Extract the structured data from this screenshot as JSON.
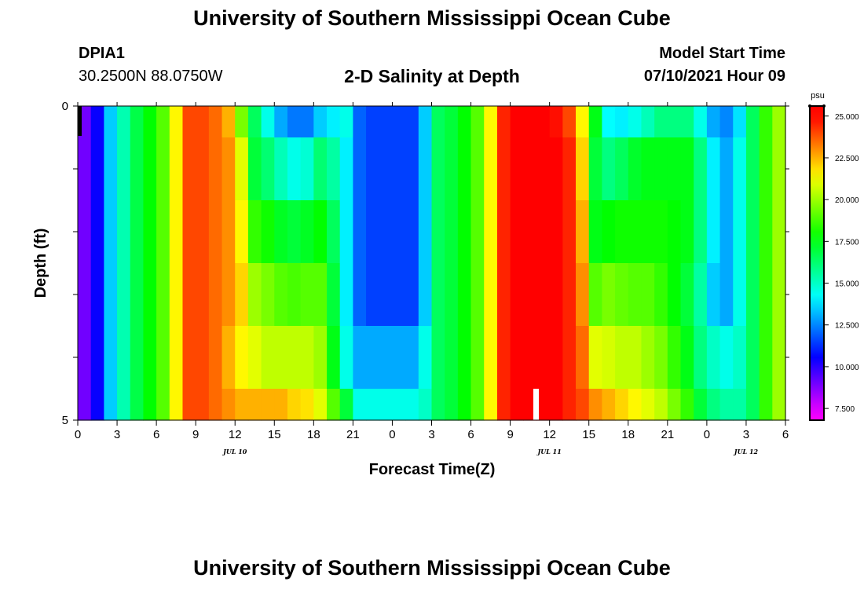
{
  "header": {
    "title": "University of Southern Mississippi Ocean Cube",
    "station_id": "DPIA1",
    "coords": "30.2500N  88.0750W",
    "chart_title": "2-D Salinity at Depth",
    "model_start_label": "Model Start Time",
    "model_start_time": "07/10/2021 Hour 09"
  },
  "footer": {
    "title": "University of Southern Mississippi Ocean Cube"
  },
  "chart_data": {
    "type": "heatmap",
    "title": "2-D Salinity at Depth",
    "xlabel": "Forecast Time(Z)",
    "ylabel": "Depth (ft)",
    "x_tick_labels": [
      "0",
      "3",
      "6",
      "9",
      "12",
      "15",
      "18",
      "21",
      "0",
      "3",
      "6",
      "9",
      "12",
      "15",
      "18",
      "21",
      "0",
      "3",
      "6"
    ],
    "x_range_hours": [
      0,
      54
    ],
    "date_labels": [
      {
        "label": "JUL 10",
        "hour": 12
      },
      {
        "label": "JUL 11",
        "hour": 36
      },
      {
        "label": "JUL 12",
        "hour": 51
      }
    ],
    "y_tick_labels": [
      "0",
      "5"
    ],
    "y_range": [
      0,
      5
    ],
    "colorbar": {
      "unit": "psu",
      "tick_labels": [
        "25.000",
        "22.500",
        "20.000",
        "17.500",
        "15.000",
        "12.500",
        "10.000",
        "7.500"
      ],
      "range": [
        6.8,
        25.6
      ]
    },
    "hours": [
      0,
      1,
      2,
      3,
      4,
      5,
      6,
      7,
      8,
      9,
      10,
      11,
      12,
      13,
      14,
      15,
      16,
      17,
      18,
      19,
      20,
      21,
      22,
      23,
      24,
      25,
      26,
      27,
      28,
      29,
      30,
      31,
      32,
      33,
      34,
      35,
      36,
      37,
      38,
      39,
      40,
      41,
      42,
      43,
      44,
      45,
      46,
      47,
      48,
      49,
      50,
      51,
      52,
      53
    ],
    "depth_layers": [
      {
        "depth": [
          0.0,
          0.5
        ],
        "values": [
          9.0,
          10.5,
          13.5,
          15.3,
          16.8,
          17.8,
          19.0,
          21.5,
          24.0,
          24.0,
          23.5,
          22.5,
          19.5,
          16.5,
          14.5,
          13.0,
          12.3,
          12.3,
          13.5,
          14.0,
          14.5,
          12.0,
          11.5,
          11.5,
          11.5,
          11.5,
          13.5,
          16.5,
          17.0,
          17.8,
          19.0,
          21.5,
          24.5,
          25.0,
          25.0,
          25.0,
          24.8,
          24.0,
          21.5,
          17.5,
          14.2,
          14.0,
          14.5,
          15.2,
          16.0,
          16.0,
          16.0,
          14.5,
          13.0,
          12.5,
          13.8,
          16.5,
          18.5,
          20.0
        ]
      },
      {
        "depth": [
          0.5,
          1.5
        ],
        "values": [
          9.0,
          10.5,
          13.5,
          15.3,
          16.8,
          17.8,
          19.0,
          21.5,
          24.0,
          24.0,
          23.5,
          23.0,
          21.0,
          17.0,
          16.2,
          15.2,
          14.5,
          14.8,
          16.2,
          15.5,
          14.0,
          12.0,
          11.5,
          11.5,
          11.5,
          11.5,
          13.5,
          16.5,
          17.0,
          17.8,
          19.0,
          21.5,
          24.5,
          25.0,
          25.0,
          25.0,
          25.0,
          24.5,
          22.0,
          17.0,
          16.0,
          16.5,
          17.2,
          17.5,
          17.5,
          17.5,
          17.5,
          16.0,
          14.0,
          13.0,
          14.5,
          16.5,
          18.5,
          20.0
        ]
      },
      {
        "depth": [
          1.5,
          2.5
        ],
        "values": [
          9.0,
          10.5,
          13.5,
          15.3,
          16.8,
          17.8,
          19.0,
          21.5,
          24.0,
          24.0,
          23.5,
          23.0,
          21.5,
          18.5,
          18.0,
          17.3,
          17.0,
          17.3,
          17.8,
          16.5,
          14.0,
          12.0,
          11.5,
          11.5,
          11.5,
          11.5,
          13.5,
          16.5,
          17.0,
          17.8,
          19.0,
          21.5,
          24.5,
          25.0,
          25.0,
          25.0,
          25.0,
          24.5,
          22.5,
          17.5,
          17.8,
          18.0,
          18.0,
          18.0,
          18.0,
          17.8,
          17.5,
          16.0,
          14.0,
          13.0,
          14.5,
          16.5,
          18.5,
          20.0
        ]
      },
      {
        "depth": [
          2.5,
          3.5
        ],
        "values": [
          9.0,
          10.5,
          13.5,
          15.3,
          16.8,
          17.8,
          19.0,
          21.5,
          24.0,
          24.0,
          23.5,
          23.0,
          22.0,
          20.0,
          19.5,
          19.0,
          18.8,
          19.0,
          19.0,
          17.0,
          14.0,
          12.0,
          11.5,
          11.5,
          11.5,
          11.5,
          13.5,
          16.5,
          17.0,
          17.8,
          19.0,
          21.5,
          24.5,
          25.0,
          25.0,
          25.0,
          25.0,
          24.5,
          23.0,
          19.0,
          19.5,
          19.2,
          19.0,
          19.0,
          18.5,
          17.8,
          17.0,
          15.5,
          13.5,
          13.0,
          14.5,
          16.5,
          18.5,
          20.0
        ]
      },
      {
        "depth": [
          3.5,
          4.5
        ],
        "values": [
          9.0,
          10.5,
          13.5,
          15.3,
          16.8,
          17.8,
          19.0,
          21.5,
          24.0,
          24.0,
          23.5,
          22.5,
          21.5,
          21.0,
          20.5,
          20.5,
          20.5,
          20.5,
          20.0,
          17.5,
          14.5,
          13.0,
          13.0,
          13.0,
          13.0,
          13.0,
          14.5,
          16.5,
          17.0,
          17.8,
          19.0,
          21.5,
          24.5,
          25.0,
          25.0,
          25.0,
          25.0,
          24.5,
          23.5,
          21.0,
          20.8,
          20.5,
          20.5,
          20.0,
          19.5,
          18.5,
          17.5,
          16.0,
          15.0,
          14.5,
          15.0,
          16.5,
          18.5,
          20.0
        ]
      },
      {
        "depth": [
          4.5,
          5.0
        ],
        "values": [
          9.0,
          10.5,
          13.5,
          15.3,
          16.8,
          17.8,
          19.0,
          21.5,
          24.0,
          24.0,
          23.5,
          23.0,
          22.5,
          22.5,
          22.5,
          22.5,
          22.0,
          21.8,
          21.0,
          19.0,
          17.0,
          14.5,
          14.5,
          14.5,
          14.5,
          14.5,
          15.0,
          16.5,
          17.0,
          17.8,
          19.0,
          21.5,
          24.5,
          25.0,
          25.0,
          25.0,
          25.0,
          24.5,
          24.0,
          23.0,
          22.5,
          22.0,
          21.5,
          21.0,
          20.5,
          19.5,
          18.5,
          17.0,
          16.0,
          15.5,
          15.5,
          16.5,
          18.5,
          20.0
        ]
      }
    ]
  }
}
